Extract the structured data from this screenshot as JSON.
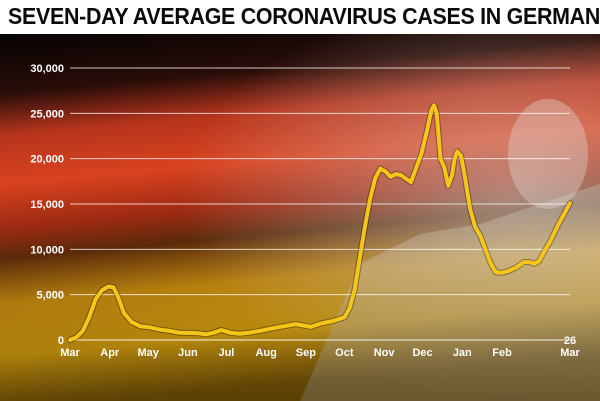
{
  "chart_data": {
    "type": "line",
    "title": "SEVEN-DAY AVERAGE CORONAVIRUS CASES IN GERMANY",
    "xlabel": "",
    "ylabel": "",
    "ylim": [
      0,
      30000
    ],
    "yticks": [
      "30,000",
      "25,000",
      "20,000",
      "15,000",
      "10,000",
      "5,000",
      "0"
    ],
    "ytick_values": [
      30000,
      25000,
      20000,
      15000,
      10000,
      5000,
      0
    ],
    "xticks": [
      {
        "label": "Mar",
        "day": 0
      },
      {
        "label": "Apr",
        "day": 31
      },
      {
        "label": "May",
        "day": 61
      },
      {
        "label": "Jun",
        "day": 92
      },
      {
        "label": "Jul",
        "day": 122
      },
      {
        "label": "Aug",
        "day": 153
      },
      {
        "label": "Sep",
        "day": 184
      },
      {
        "label": "Oct",
        "day": 214
      },
      {
        "label": "Nov",
        "day": 245
      },
      {
        "label": "Dec",
        "day": 275
      },
      {
        "label": "Jan",
        "day": 306
      },
      {
        "label": "Feb",
        "day": 337
      },
      {
        "label": "26",
        "label2": "Mar",
        "day": 390
      }
    ],
    "grid": true,
    "line_color": "#f5c518",
    "series": [
      {
        "points": [
          [
            0,
            0
          ],
          [
            5,
            300
          ],
          [
            10,
            1000
          ],
          [
            15,
            2500
          ],
          [
            20,
            4500
          ],
          [
            25,
            5500
          ],
          [
            30,
            5900
          ],
          [
            34,
            5800
          ],
          [
            38,
            4600
          ],
          [
            42,
            3000
          ],
          [
            48,
            2000
          ],
          [
            55,
            1500
          ],
          [
            62,
            1400
          ],
          [
            70,
            1150
          ],
          [
            78,
            1000
          ],
          [
            85,
            800
          ],
          [
            92,
            780
          ],
          [
            100,
            750
          ],
          [
            106,
            620
          ],
          [
            112,
            800
          ],
          [
            118,
            1100
          ],
          [
            125,
            800
          ],
          [
            132,
            700
          ],
          [
            140,
            800
          ],
          [
            148,
            1000
          ],
          [
            155,
            1200
          ],
          [
            162,
            1400
          ],
          [
            170,
            1600
          ],
          [
            176,
            1750
          ],
          [
            182,
            1600
          ],
          [
            188,
            1450
          ],
          [
            195,
            1800
          ],
          [
            205,
            2100
          ],
          [
            214,
            2500
          ],
          [
            218,
            3500
          ],
          [
            222,
            5500
          ],
          [
            226,
            9000
          ],
          [
            230,
            12500
          ],
          [
            234,
            15500
          ],
          [
            238,
            17800
          ],
          [
            242,
            18900
          ],
          [
            246,
            18600
          ],
          [
            250,
            18000
          ],
          [
            254,
            18300
          ],
          [
            258,
            18200
          ],
          [
            262,
            17800
          ],
          [
            266,
            17400
          ],
          [
            270,
            19000
          ],
          [
            274,
            20500
          ],
          [
            278,
            22800
          ],
          [
            282,
            25400
          ],
          [
            284,
            25900
          ],
          [
            286,
            25000
          ],
          [
            289,
            20000
          ],
          [
            292,
            19000
          ],
          [
            295,
            17000
          ],
          [
            298,
            18200
          ],
          [
            300,
            20000
          ],
          [
            302,
            20800
          ],
          [
            305,
            20300
          ],
          [
            308,
            18000
          ],
          [
            312,
            14500
          ],
          [
            316,
            12500
          ],
          [
            320,
            11500
          ],
          [
            324,
            10000
          ],
          [
            328,
            8500
          ],
          [
            332,
            7500
          ],
          [
            336,
            7400
          ],
          [
            342,
            7600
          ],
          [
            348,
            8000
          ],
          [
            354,
            8600
          ],
          [
            358,
            8600
          ],
          [
            362,
            8400
          ],
          [
            366,
            8700
          ],
          [
            370,
            9800
          ],
          [
            375,
            11000
          ],
          [
            380,
            12500
          ],
          [
            385,
            13800
          ],
          [
            390,
            15100
          ]
        ]
      }
    ]
  }
}
